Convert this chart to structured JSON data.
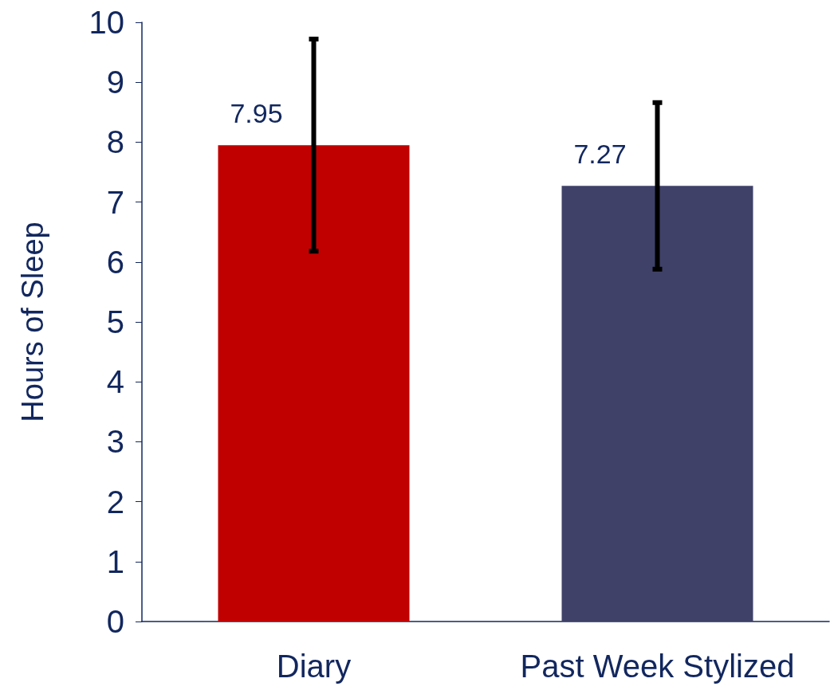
{
  "chart_data": {
    "type": "bar",
    "ylabel": "Hours of Sleep",
    "categories": [
      "Diary",
      "Past Week Stylized"
    ],
    "values": [
      7.95,
      7.27
    ],
    "colors": [
      "#c00000",
      "#3f4168"
    ],
    "errors": [
      1.77,
      1.39
    ],
    "ylim": [
      0,
      10
    ],
    "yticks": [
      0,
      1,
      2,
      3,
      4,
      5,
      6,
      7,
      8,
      9,
      10
    ],
    "grid": false,
    "data_labels": true
  }
}
